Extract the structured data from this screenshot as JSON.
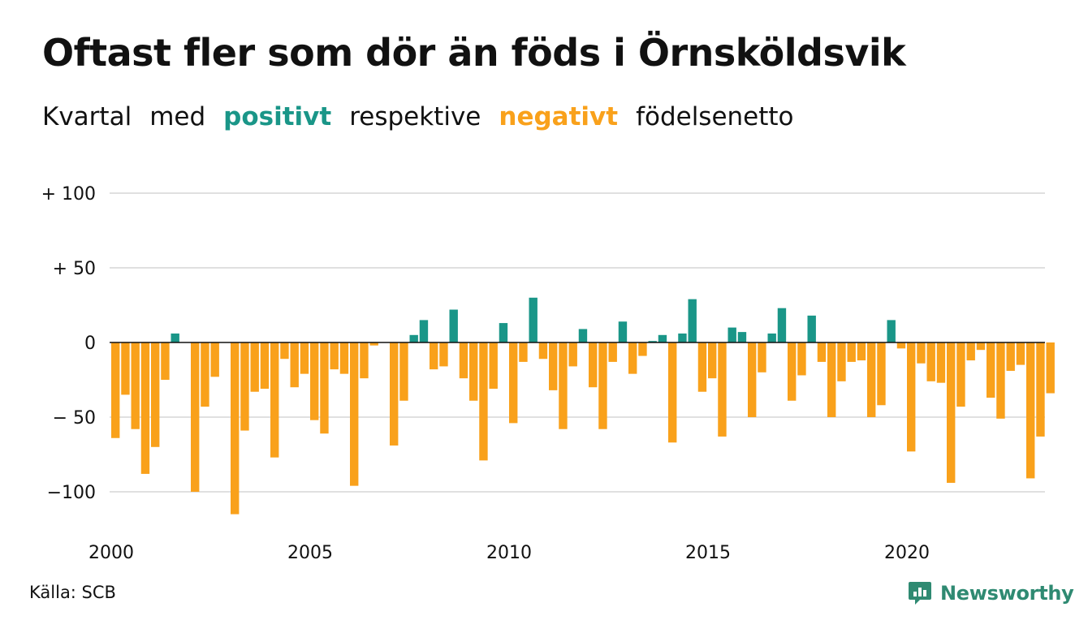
{
  "title": "Oftast fler som dör än föds i Örnsköldsvik",
  "subtitle": {
    "part1": "Kvartal",
    "part2": "med",
    "positive_word": "positivt",
    "part3": "respektive",
    "negative_word": "negativt",
    "part4": "födelsenetto"
  },
  "colors": {
    "positive": "#1a9688",
    "negative": "#f9a11b",
    "grid": "#e0e0e0",
    "zero_line": "#111111",
    "brand": "#2f8a72"
  },
  "source": "Källa: SCB",
  "brand": {
    "name": "Newsworthy",
    "icon": "newsworthy-logo-icon"
  },
  "chart_data": {
    "type": "bar",
    "x_start": 2000,
    "x_end": 2023.75,
    "x_unit": "year (quarters)",
    "xticks": [
      2000,
      2005,
      2010,
      2015,
      2020
    ],
    "xtick_labels": [
      "2000",
      "2005",
      "2010",
      "2015",
      "2020"
    ],
    "yticks": [
      100,
      50,
      0,
      -50,
      -100
    ],
    "ytick_labels": [
      "+ 100",
      "+  50",
      "0",
      "− 50",
      "−100"
    ],
    "ylim": [
      -120,
      100
    ],
    "grid": true,
    "values": [
      -64,
      -35,
      -58,
      -88,
      -70,
      -25,
      6,
      0,
      -100,
      -43,
      -23,
      0,
      -115,
      -59,
      -33,
      -31,
      -77,
      -11,
      -30,
      -21,
      -52,
      -61,
      -18,
      -21,
      -96,
      -24,
      -2,
      0,
      -69,
      -39,
      5,
      15,
      -18,
      -16,
      22,
      -24,
      -39,
      -79,
      -31,
      13,
      -54,
      -13,
      30,
      -11,
      -32,
      -58,
      -16,
      9,
      -30,
      -58,
      -13,
      14,
      -21,
      -9,
      1,
      5,
      -67,
      6,
      29,
      -33,
      -24,
      -63,
      10,
      7,
      -50,
      -20,
      6,
      23,
      -39,
      -22,
      18,
      -13,
      -50,
      -26,
      -13,
      -12,
      -50,
      -42,
      15,
      -4,
      -73,
      -14,
      -26,
      -27,
      -94,
      -43,
      -12,
      -5,
      -37,
      -51,
      -19,
      -15,
      -91,
      -63,
      -34
    ]
  }
}
